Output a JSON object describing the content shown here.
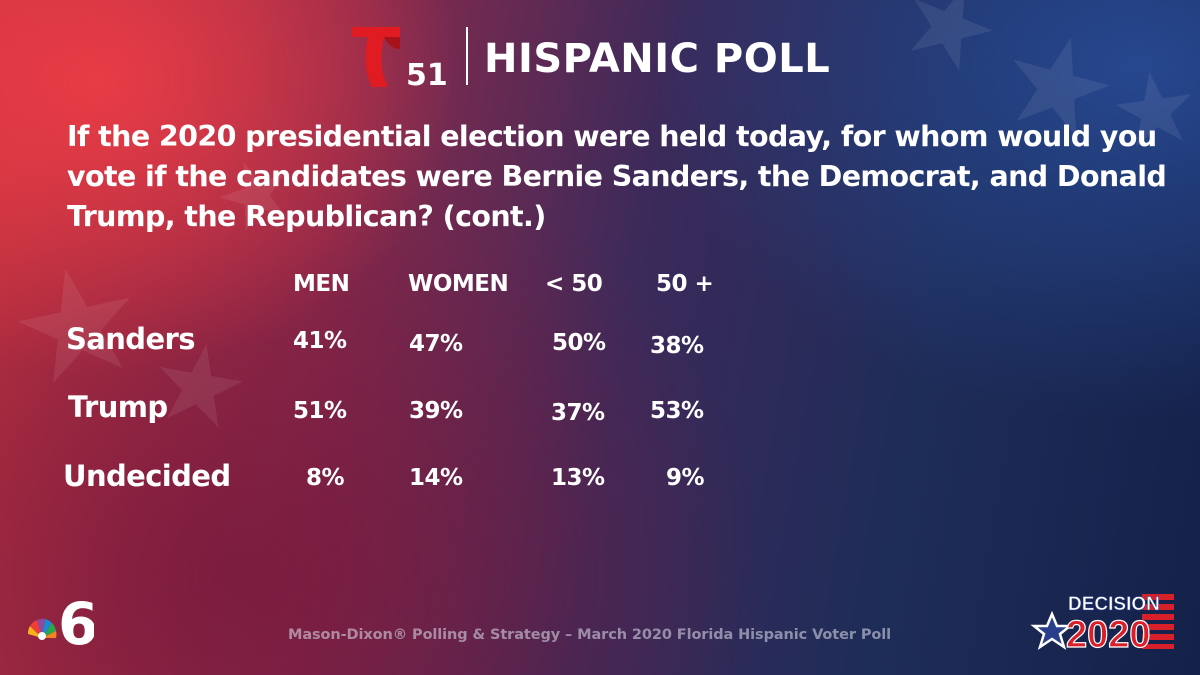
{
  "header": {
    "channel_number": "51",
    "title": "HISPANIC POLL"
  },
  "question": "If the 2020 presidential election were held today, for whom would you vote if the candidates were Bernie Sanders, the Democrat, and Donald Trump, the Republican? (cont.)",
  "chart_data": {
    "type": "table",
    "columns": [
      "MEN",
      "WOMEN",
      "< 50",
      "50 +"
    ],
    "rows": [
      {
        "label": "Sanders",
        "values": [
          "41%",
          "47%",
          "50%",
          "38%"
        ]
      },
      {
        "label": "Trump",
        "values": [
          "51%",
          "39%",
          "37%",
          "53%"
        ]
      },
      {
        "label": "Undecided",
        "values": [
          "8%",
          "14%",
          "13%",
          "9%"
        ]
      }
    ]
  },
  "footer": {
    "source": "Mason-Dixon® Polling & Strategy – March 2020 Florida Hispanic Voter Poll",
    "station_number": "6",
    "decision_word": "DECISION",
    "decision_year": "2020"
  },
  "colors": {
    "telemundo_red": "#e11b22",
    "decision_blue": "#2a3f8c",
    "stripe_red": "#d8202a"
  }
}
